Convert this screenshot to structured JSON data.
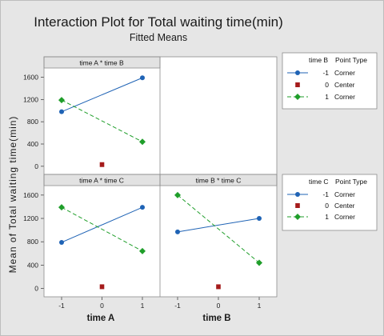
{
  "title": "Interaction Plot for Total waiting time(min)",
  "subtitle": "Fitted Means",
  "ylabel": "Mean of Total waiting time(min)",
  "xlabels": [
    "time A",
    "time B"
  ],
  "colors": {
    "-1": "#1f63b5",
    "0": "#a51b1b",
    "1": "#1f9e2a"
  },
  "legends": [
    {
      "title_var": "time B",
      "title_type": "Point Type",
      "entries": [
        {
          "level": "-1",
          "type": "Corner"
        },
        {
          "level": "0",
          "type": "Center"
        },
        {
          "level": "1",
          "type": "Corner"
        }
      ]
    },
    {
      "title_var": "time C",
      "title_type": "Point Type",
      "entries": [
        {
          "level": "-1",
          "type": "Corner"
        },
        {
          "level": "0",
          "type": "Center"
        },
        {
          "level": "1",
          "type": "Corner"
        }
      ]
    }
  ],
  "chart_data": [
    {
      "type": "line",
      "title": "time A * time B",
      "x_tick_labels": [
        "-1",
        "0",
        "1"
      ],
      "y_ticks": [
        0,
        400,
        800,
        1200,
        1600
      ],
      "ylim": [
        -60,
        1680
      ],
      "series": [
        {
          "name": "-1",
          "point_type": "Corner",
          "x": [
            -1,
            1
          ],
          "y": [
            980,
            1590
          ]
        },
        {
          "name": "0",
          "point_type": "Center",
          "x": [
            0
          ],
          "y": [
            30
          ]
        },
        {
          "name": "1",
          "point_type": "Corner",
          "x": [
            -1,
            1
          ],
          "y": [
            1190,
            440
          ]
        }
      ]
    },
    {
      "type": "line",
      "title": "time A * time C",
      "x_tick_labels": [
        "-1",
        "0",
        "1"
      ],
      "y_ticks": [
        0,
        400,
        800,
        1200,
        1600
      ],
      "ylim": [
        -60,
        1680
      ],
      "series": [
        {
          "name": "-1",
          "point_type": "Corner",
          "x": [
            -1,
            1
          ],
          "y": [
            790,
            1390
          ]
        },
        {
          "name": "0",
          "point_type": "Center",
          "x": [
            0
          ],
          "y": [
            30
          ]
        },
        {
          "name": "1",
          "point_type": "Corner",
          "x": [
            -1,
            1
          ],
          "y": [
            1390,
            640
          ]
        }
      ]
    },
    {
      "type": "line",
      "title": "time B * time C",
      "x_tick_labels": [
        "-1",
        "0",
        "1"
      ],
      "series": [
        {
          "name": "-1",
          "point_type": "Corner",
          "x": [
            -1,
            1
          ],
          "y": [
            970,
            1200
          ]
        },
        {
          "name": "0",
          "point_type": "Center",
          "x": [
            0
          ],
          "y": [
            30
          ]
        },
        {
          "name": "1",
          "point_type": "Corner",
          "x": [
            -1,
            1
          ],
          "y": [
            1600,
            440
          ]
        }
      ]
    }
  ]
}
